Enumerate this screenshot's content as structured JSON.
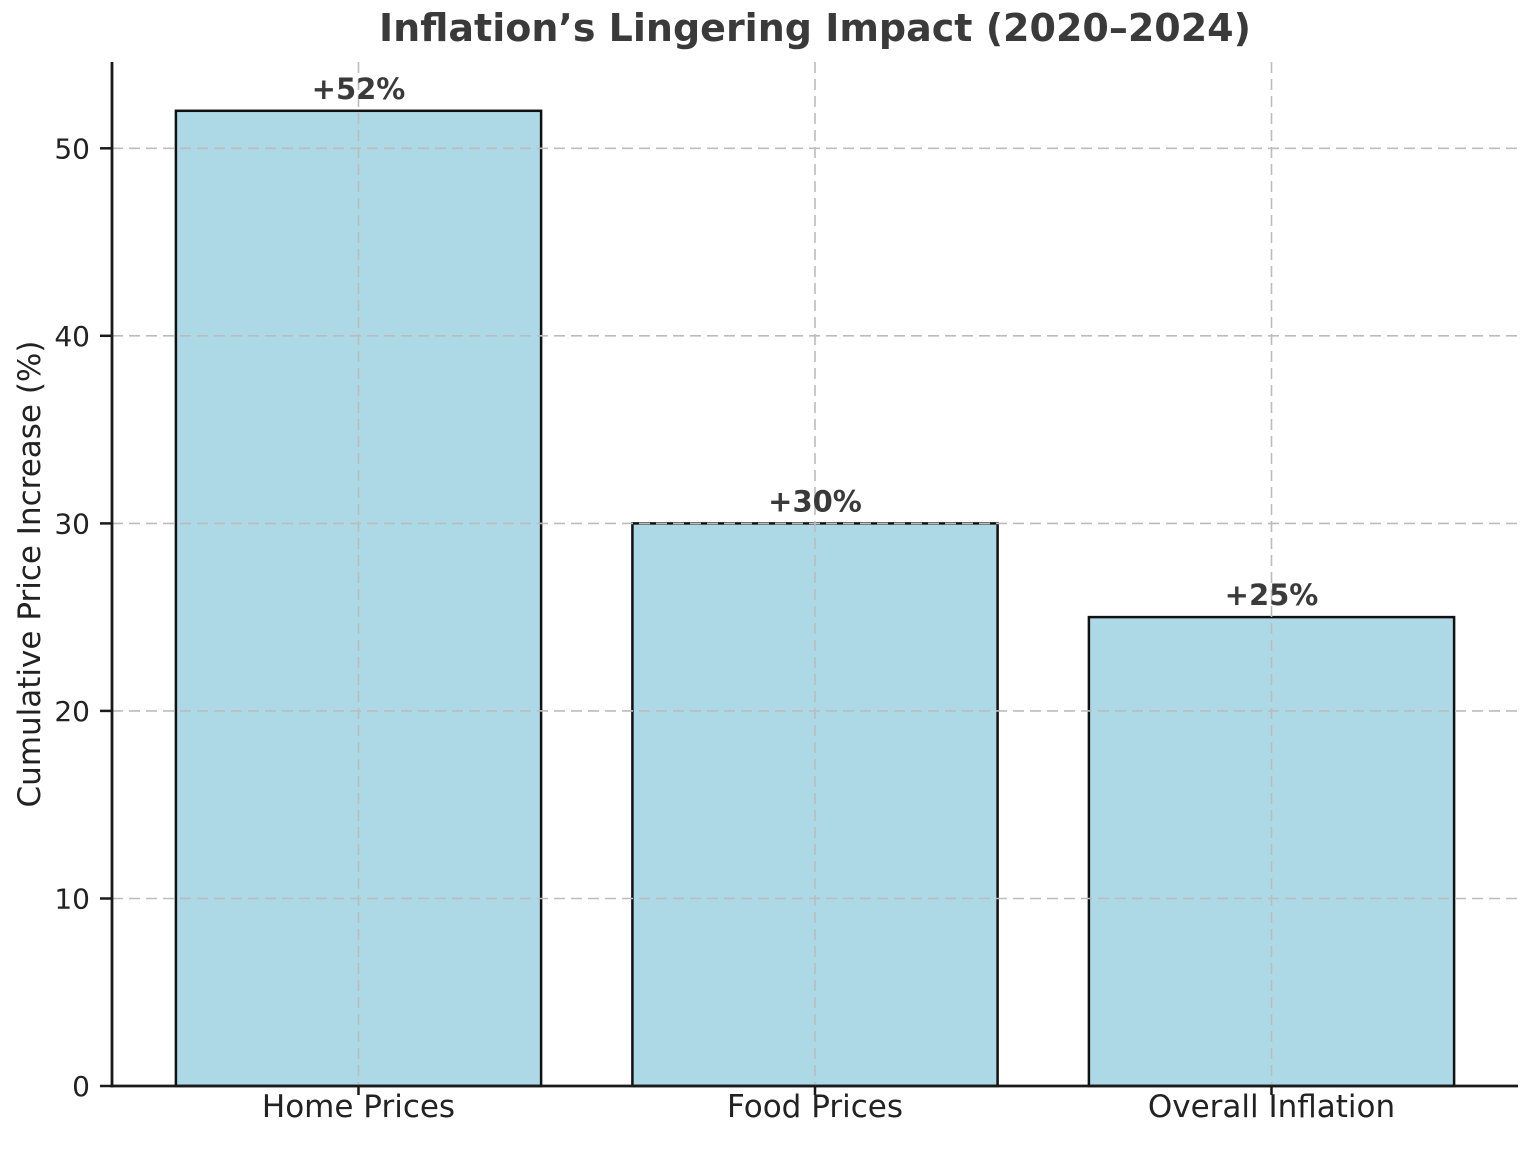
{
  "chart_data": {
    "type": "bar",
    "title": "Inflation’s Lingering Impact (2020–2024)",
    "xlabel": "",
    "ylabel": "Cumulative Price Increase (%)",
    "categories": [
      "Home Prices",
      "Food Prices",
      "Overall Inflation"
    ],
    "values": [
      52,
      30,
      25
    ],
    "bar_labels": [
      "+52%",
      "+30%",
      "+25%"
    ],
    "yticks": [
      0,
      10,
      20,
      30,
      40,
      50
    ],
    "ylim": [
      0,
      54.6
    ],
    "legend": "none",
    "grid": {
      "horizontal": true,
      "vertical": true,
      "style": "dashed",
      "drawn_above_bars": true
    },
    "colors": {
      "background": "#ffffff",
      "bar_fill": "#ADD8E6",
      "bar_edge": "#111111",
      "grid_line": "#bcbcbc",
      "spine": "#1a1a1a",
      "title_text": "#3a3a3a",
      "bar_label_text": "#3a3a3a",
      "tick_text": "#222222"
    }
  }
}
